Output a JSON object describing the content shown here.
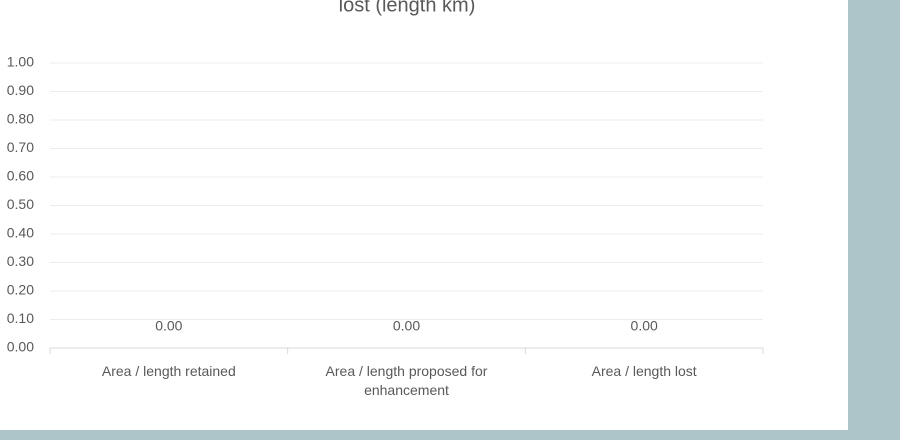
{
  "chart_data": {
    "type": "bar",
    "title": "lost (length km)",
    "categories": [
      "Area / length retained",
      "Area / length proposed for enhancement",
      "Area / length lost"
    ],
    "values": [
      0,
      0,
      0
    ],
    "value_labels": [
      "0.00",
      "0.00",
      "0.00"
    ],
    "color": "#4472c4",
    "ylim": [
      0,
      1
    ],
    "yticks": [
      {
        "value": 0,
        "label": "0.00"
      },
      {
        "value": 0.1,
        "label": "0.10"
      },
      {
        "value": 0.2,
        "label": "0.20"
      },
      {
        "value": 0.3,
        "label": "0.30"
      },
      {
        "value": 0.4,
        "label": "0.40"
      },
      {
        "value": 0.5,
        "label": "0.50"
      },
      {
        "value": 0.6,
        "label": "0.60"
      },
      {
        "value": 0.7,
        "label": "0.70"
      },
      {
        "value": 0.8,
        "label": "0.80"
      },
      {
        "value": 0.9,
        "label": "0.90"
      },
      {
        "value": 1,
        "label": "1.00"
      }
    ],
    "grid": true
  }
}
